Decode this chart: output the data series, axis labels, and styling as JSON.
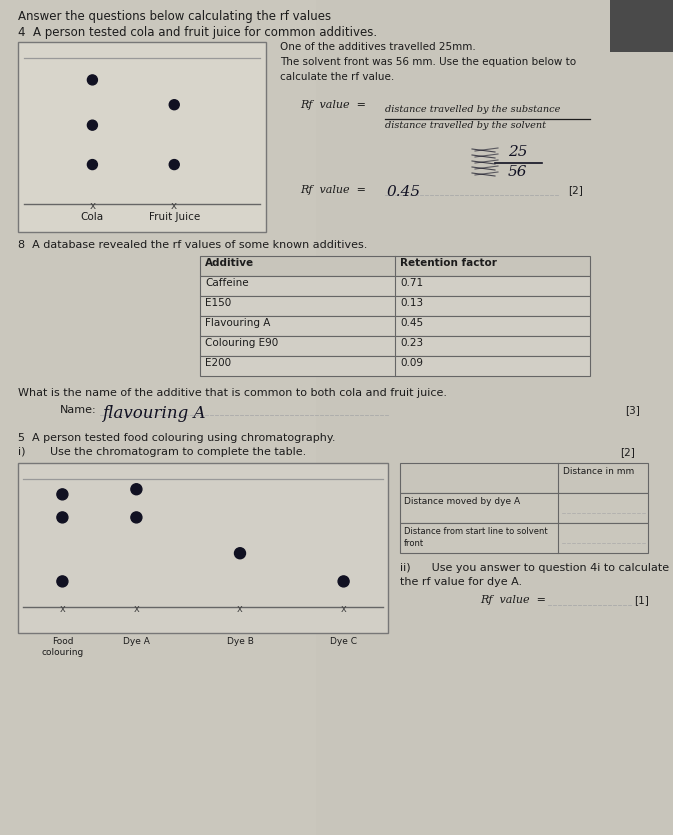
{
  "bg_color": "#b8b5a8",
  "paper_color": "#d8d5cb",
  "paper_right_color": "#ccc9be",
  "title": "Answer the questions below calculating the rf values",
  "q4_text": "4  A person tested cola and fruit juice for common additives.",
  "q4_right_text1": "One of the additives travelled 25mm.",
  "q4_right_text2": "The solvent front was 56 mm. Use the equation below to",
  "q4_right_text3": "calculate the rf value.",
  "rf_numerator": "distance travelled by the substance",
  "rf_denominator": "distance travelled by the solvent",
  "rf_calc_top": "25",
  "rf_calc_bot": "56",
  "rf_answer": "0.45",
  "marks2a": "[2]",
  "q4b_intro": "8  A database revealed the rf values of some known additives.",
  "table_headers": [
    "Additive",
    "Retention factor"
  ],
  "table_rows": [
    [
      "Caffeine",
      "0.71"
    ],
    [
      "E150",
      "0.13"
    ],
    [
      "Flavouring A",
      "0.45"
    ],
    [
      "Colouring E90",
      "0.23"
    ],
    [
      "E200",
      "0.09"
    ]
  ],
  "q4b_question": "What is the name of the additive that is common to both cola and fruit juice.",
  "name_answer": "flavouring A",
  "marks3": "[3]",
  "q5_text1": "5  A person tested food colouring using chromatography.",
  "q5_text2i": "i)       Use the chromatogram to complete the table.",
  "marks2b": "[2]",
  "table2_header": "Distance in mm",
  "table2_row1": "Distance moved by dye A",
  "table2_row2a": "Distance from start line to solvent",
  "table2_row2b": "front",
  "q5ii_text1": "ii)      Use you answer to question 4i to calculate",
  "q5ii_text2": "the rf value for dye A.",
  "marks1": "[1]",
  "cola_label": "Cola",
  "fj_label": "Fruit Juice"
}
